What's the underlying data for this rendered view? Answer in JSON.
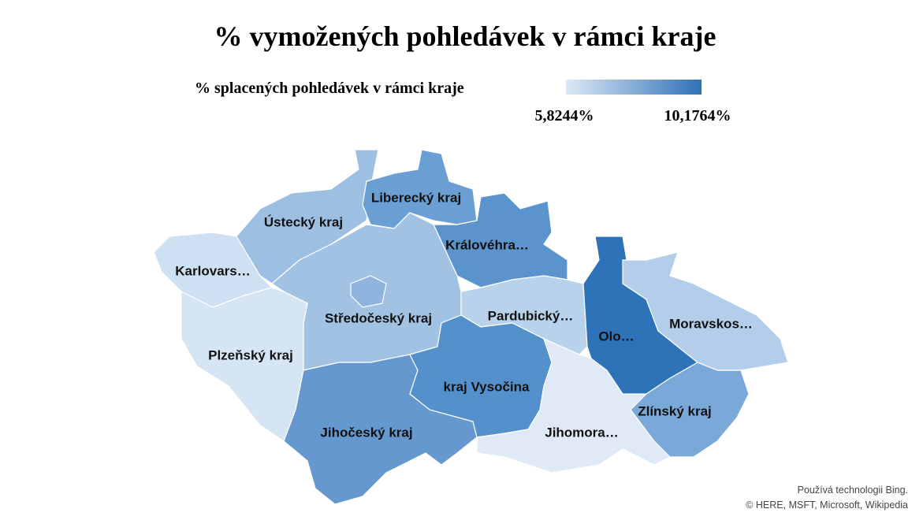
{
  "title": "% vymožených pohledávek v rámci kraje",
  "legend": {
    "title": "% splacených pohledávek v rámci kraje",
    "min_label": "5,8244%",
    "max_label": "10,1764%",
    "min_color": "#dde9f6",
    "max_color": "#2e71b8"
  },
  "regions": [
    {
      "label": "Karlovars…",
      "color": "#cfe0f2"
    },
    {
      "label": "Ústecký kraj",
      "color": "#9dbfe2"
    },
    {
      "label": "Liberecký kraj",
      "color": "#6a9fd3"
    },
    {
      "label": "Královéhra…",
      "color": "#5b93cc"
    },
    {
      "label": "Středočeský kraj",
      "color": "#a2c2e3"
    },
    {
      "label": "Pardubický…",
      "color": "#b9d2ec"
    },
    {
      "label": "Plzeňský kraj",
      "color": "#d6e5f4"
    },
    {
      "label": "Jihočeský kraj",
      "color": "#6498cf"
    },
    {
      "label": "kraj Vysočina",
      "color": "#5490cb"
    },
    {
      "label": "Jihomora…",
      "color": "#dfeaf6"
    },
    {
      "label": "Olo…",
      "color": "#2e72b8"
    },
    {
      "label": "Moravskos…",
      "color": "#b3cdea"
    },
    {
      "label": "Zlínský kraj",
      "color": "#7aa8d8"
    }
  ],
  "prague_color": "#8fb5de",
  "attribution": [
    "Používá technologii Bing.",
    "© HERE, MSFT, Microsoft, Wikipedia"
  ]
}
